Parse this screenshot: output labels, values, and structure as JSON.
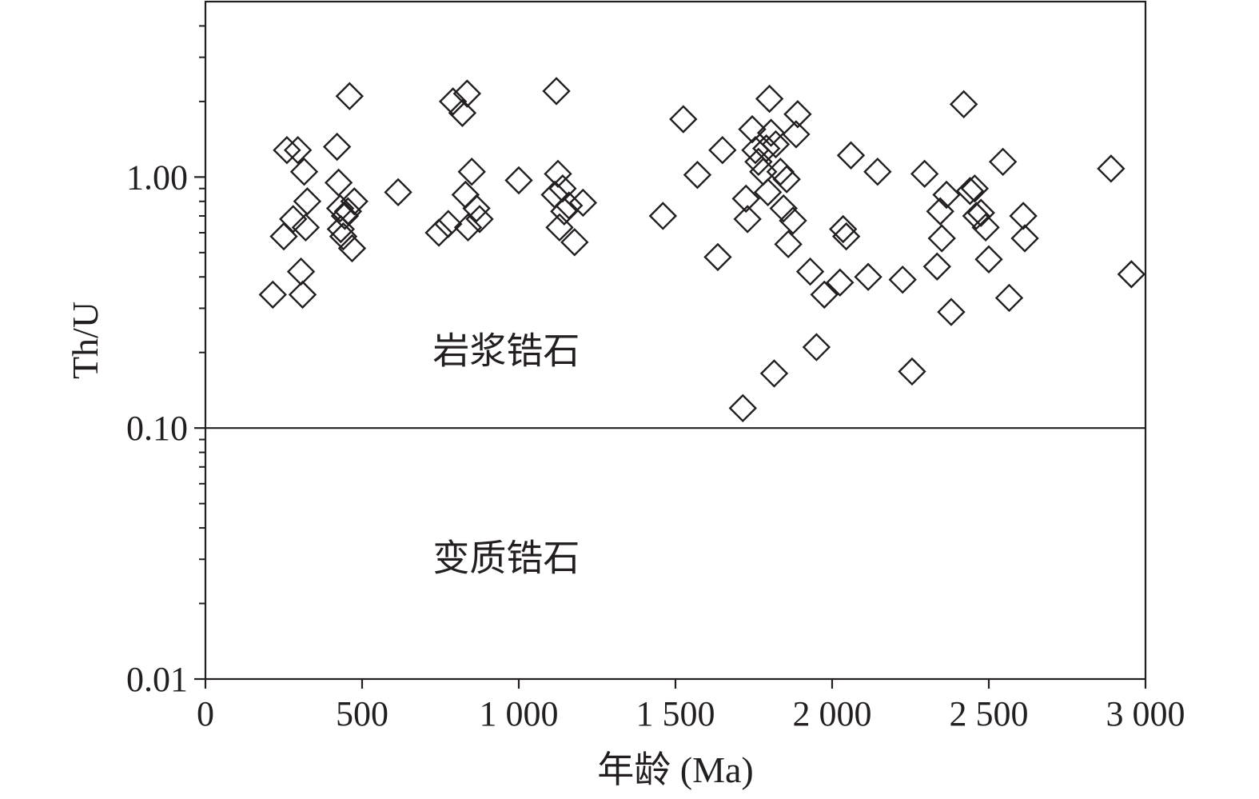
{
  "chart_data": {
    "type": "scatter",
    "xlabel": "年龄 (Ma)",
    "ylabel": "Th/U",
    "xlim": [
      0,
      3000
    ],
    "ylim": [
      0.01,
      5.0
    ],
    "yscale": "log",
    "grid": false,
    "x_ticks": [
      {
        "value": 0,
        "label": "0"
      },
      {
        "value": 500,
        "label": "500"
      },
      {
        "value": 1000,
        "label": "1 000"
      },
      {
        "value": 1500,
        "label": "1 500"
      },
      {
        "value": 2000,
        "label": "2 000"
      },
      {
        "value": 2500,
        "label": "2 500"
      },
      {
        "value": 3000,
        "label": "3 000"
      }
    ],
    "y_ticks": [
      {
        "value": 0.01,
        "label": "0.01"
      },
      {
        "value": 0.1,
        "label": "0.10"
      },
      {
        "value": 1.0,
        "label": "1.00"
      }
    ],
    "reference_line": {
      "y": 0.1
    },
    "annotations": [
      {
        "text": "岩浆锆石",
        "x": 960,
        "y": 0.2
      },
      {
        "text": "变质锆石",
        "x": 960,
        "y": 0.03
      }
    ],
    "series": [
      {
        "marker": "diamond",
        "points": [
          [
            215,
            0.34
          ],
          [
            250,
            0.58
          ],
          [
            260,
            1.28
          ],
          [
            280,
            0.68
          ],
          [
            295,
            1.28
          ],
          [
            305,
            0.42
          ],
          [
            310,
            0.34
          ],
          [
            315,
            1.05
          ],
          [
            320,
            0.63
          ],
          [
            325,
            0.8
          ],
          [
            420,
            1.32
          ],
          [
            425,
            0.95
          ],
          [
            430,
            0.75
          ],
          [
            432,
            0.62
          ],
          [
            440,
            0.58
          ],
          [
            445,
            0.7
          ],
          [
            455,
            0.73
          ],
          [
            460,
            2.1
          ],
          [
            468,
            0.52
          ],
          [
            475,
            0.8
          ],
          [
            615,
            0.87
          ],
          [
            745,
            0.6
          ],
          [
            775,
            0.65
          ],
          [
            790,
            2.0
          ],
          [
            820,
            1.8
          ],
          [
            830,
            0.85
          ],
          [
            835,
            2.15
          ],
          [
            838,
            0.63
          ],
          [
            850,
            1.05
          ],
          [
            865,
            0.75
          ],
          [
            875,
            0.68
          ],
          [
            1000,
            0.97
          ],
          [
            1115,
            0.85
          ],
          [
            1120,
            2.2
          ],
          [
            1125,
            1.03
          ],
          [
            1130,
            0.63
          ],
          [
            1140,
            0.9
          ],
          [
            1145,
            0.73
          ],
          [
            1160,
            0.77
          ],
          [
            1178,
            0.55
          ],
          [
            1205,
            0.79
          ],
          [
            1460,
            0.7
          ],
          [
            1525,
            1.7
          ],
          [
            1570,
            1.02
          ],
          [
            1635,
            0.48
          ],
          [
            1650,
            1.28
          ],
          [
            1715,
            0.12
          ],
          [
            1725,
            0.82
          ],
          [
            1730,
            0.68
          ],
          [
            1745,
            1.55
          ],
          [
            1755,
            1.28
          ],
          [
            1765,
            1.15
          ],
          [
            1780,
            1.05
          ],
          [
            1790,
            1.3
          ],
          [
            1795,
            0.87
          ],
          [
            1800,
            2.05
          ],
          [
            1805,
            1.5
          ],
          [
            1815,
            0.165
          ],
          [
            1820,
            1.35
          ],
          [
            1835,
            1.05
          ],
          [
            1845,
            0.75
          ],
          [
            1855,
            0.98
          ],
          [
            1860,
            0.54
          ],
          [
            1875,
            0.67
          ],
          [
            1885,
            1.48
          ],
          [
            1890,
            1.78
          ],
          [
            1930,
            0.42
          ],
          [
            1950,
            0.21
          ],
          [
            1975,
            0.34
          ],
          [
            2025,
            0.38
          ],
          [
            2035,
            0.62
          ],
          [
            2045,
            0.58
          ],
          [
            2060,
            1.22
          ],
          [
            2115,
            0.4
          ],
          [
            2145,
            1.05
          ],
          [
            2225,
            0.39
          ],
          [
            2255,
            0.168
          ],
          [
            2295,
            1.03
          ],
          [
            2335,
            0.44
          ],
          [
            2345,
            0.73
          ],
          [
            2350,
            0.57
          ],
          [
            2365,
            0.85
          ],
          [
            2380,
            0.29
          ],
          [
            2420,
            1.95
          ],
          [
            2440,
            0.88
          ],
          [
            2455,
            0.9
          ],
          [
            2460,
            0.7
          ],
          [
            2475,
            0.72
          ],
          [
            2490,
            0.63
          ],
          [
            2500,
            0.47
          ],
          [
            2545,
            1.15
          ],
          [
            2565,
            0.33
          ],
          [
            2610,
            0.7
          ],
          [
            2615,
            0.57
          ],
          [
            2890,
            1.08
          ],
          [
            2955,
            0.41
          ]
        ]
      }
    ]
  }
}
